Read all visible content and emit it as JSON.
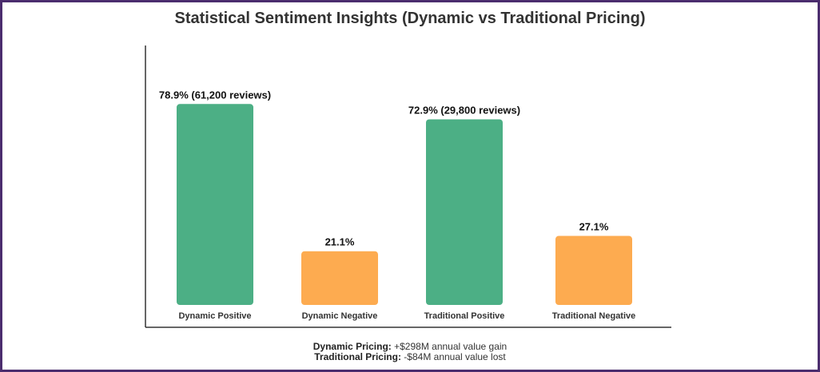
{
  "chart_data": {
    "type": "bar",
    "title": "Statistical Sentiment Insights (Dynamic vs Traditional Pricing)",
    "categories": [
      "Dynamic Positive",
      "Dynamic Negative",
      "Traditional Positive",
      "Traditional Negative"
    ],
    "values": [
      78.9,
      21.1,
      72.9,
      27.1
    ],
    "data_labels": [
      "78.9% (61,200 reviews)",
      "21.1%",
      "72.9% (29,800 reviews)",
      "27.1%"
    ],
    "colors": [
      "#4caf85",
      "#fdab50",
      "#4caf85",
      "#fdab50"
    ],
    "ylim": [
      0,
      100
    ],
    "grid": false,
    "xlabel": "",
    "ylabel": ""
  },
  "footer": {
    "dynamic_label": "Dynamic Pricing:",
    "dynamic_text": " +$298M annual value gain",
    "traditional_label": "Traditional Pricing:",
    "traditional_text": " -$84M annual value lost"
  }
}
